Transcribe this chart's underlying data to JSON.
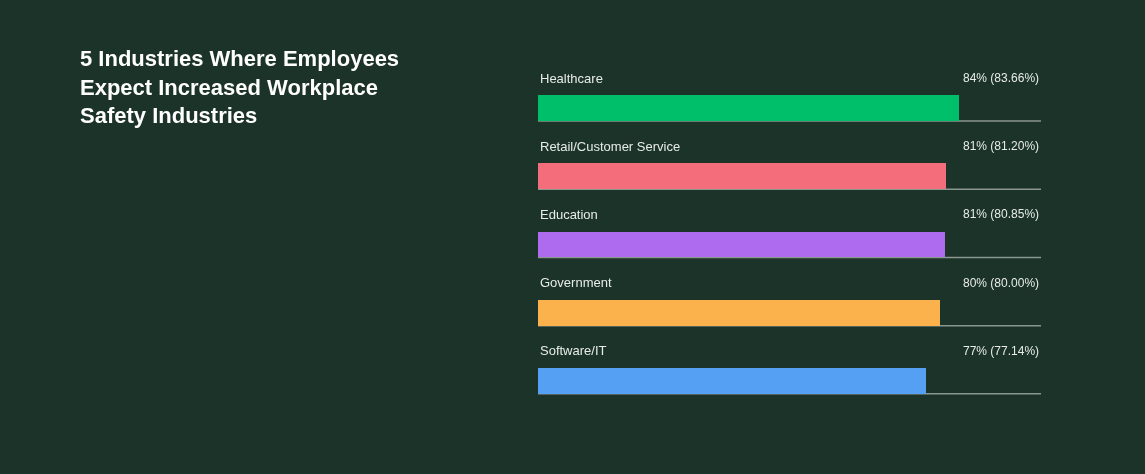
{
  "chart_data": {
    "type": "bar",
    "orientation": "horizontal",
    "title": "5 Industries Where Employees Expect Increased Workplace Safety Industries",
    "categories": [
      "Healthcare",
      "Retail/Customer Service",
      "Education",
      "Government",
      "Software/IT"
    ],
    "values": [
      83.66,
      81.2,
      80.85,
      80.0,
      77.14
    ],
    "value_labels": [
      "84% (83.66%)",
      "81% (81.20%)",
      "81% (80.85%)",
      "80% (80.00%)",
      "77% (77.14%)"
    ],
    "colors": [
      "#00bf6a",
      "#f46d7b",
      "#ae6bef",
      "#fbb24c",
      "#56a0f4"
    ],
    "xlim": [
      0,
      100
    ],
    "tick_labels": "y"
  }
}
